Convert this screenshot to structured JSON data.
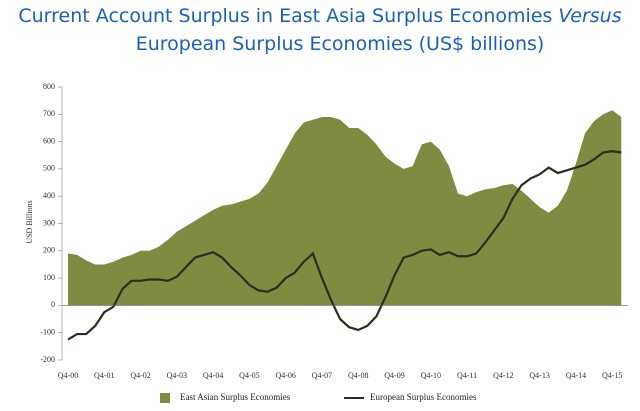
{
  "chart_data": {
    "type": "area-line",
    "title": "Current Account Surplus in East Asia Surplus Economies",
    "title_italic": "Versus",
    "title_line2": "European Surplus Economies (US$ billions)",
    "y_label": "USD Billions",
    "categories": [
      "Q4-00",
      null,
      null,
      null,
      "Q4-01",
      null,
      null,
      null,
      "Q4-02",
      null,
      null,
      null,
      "Q4-03",
      null,
      null,
      null,
      "Q4-04",
      null,
      null,
      null,
      "Q4-05",
      null,
      null,
      null,
      "Q4-06",
      null,
      null,
      null,
      "Q4-07",
      null,
      null,
      null,
      "Q4-08",
      null,
      null,
      null,
      "Q4-09",
      null,
      null,
      null,
      "Q4-10",
      null,
      null,
      null,
      "Q4-11",
      null,
      null,
      null,
      "Q4-12",
      null,
      null,
      null,
      "Q4-13",
      null,
      null,
      null,
      "Q4-14",
      null,
      null,
      null,
      "Q4-15",
      null
    ],
    "series": [
      {
        "name": "East Asian Surplus Economies",
        "color": "#7d8c40",
        "style": "area",
        "values": [
          190,
          185,
          165,
          150,
          150,
          160,
          175,
          185,
          200,
          200,
          215,
          240,
          270,
          290,
          310,
          330,
          350,
          365,
          370,
          380,
          390,
          410,
          450,
          510,
          570,
          630,
          670,
          680,
          690,
          690,
          680,
          650,
          650,
          625,
          590,
          545,
          520,
          500,
          510,
          590,
          600,
          570,
          510,
          410,
          400,
          415,
          425,
          430,
          440,
          445,
          420,
          390,
          360,
          340,
          365,
          420,
          520,
          630,
          675,
          700,
          715,
          690
        ]
      },
      {
        "name": "European Surplus Economies",
        "color": "#2e2c1c",
        "style": "line",
        "values": [
          -125,
          -105,
          -105,
          -75,
          -25,
          -5,
          60,
          90,
          90,
          95,
          95,
          90,
          105,
          140,
          175,
          185,
          195,
          175,
          140,
          110,
          75,
          55,
          50,
          65,
          100,
          120,
          160,
          190,
          100,
          20,
          -50,
          -80,
          -90,
          -75,
          -40,
          30,
          110,
          175,
          185,
          200,
          205,
          185,
          195,
          180,
          180,
          190,
          230,
          275,
          320,
          390,
          440,
          465,
          480,
          505,
          485,
          495,
          505,
          515,
          535,
          560,
          565,
          560
        ]
      }
    ],
    "ylim": [
      -200,
      800
    ],
    "yticks": [
      -200,
      -100,
      0,
      100,
      200,
      300,
      400,
      500,
      600,
      700,
      800
    ]
  }
}
